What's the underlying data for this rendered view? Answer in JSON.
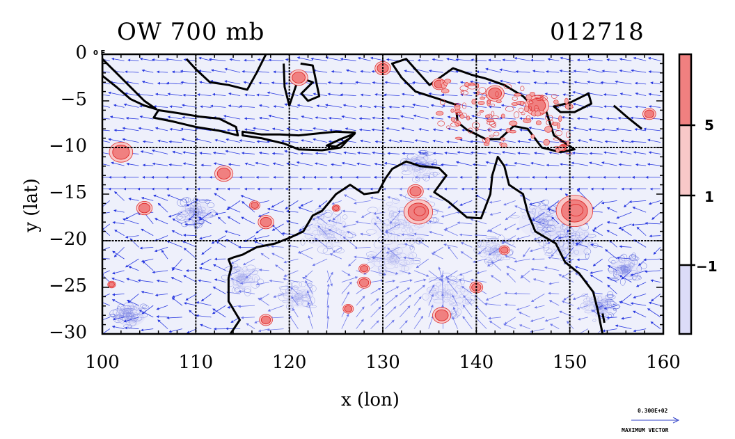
{
  "header": {
    "left_title": "OW 700 mb",
    "right_title": "012718",
    "corner_tag": "0 E"
  },
  "axes": {
    "xlabel": "x (lon)",
    "ylabel": "y (lat)",
    "xticks": [
      100,
      110,
      120,
      130,
      140,
      150,
      160
    ],
    "yticks": [
      0,
      -5,
      -10,
      -15,
      -20,
      -25,
      -30
    ],
    "xtick_labels": [
      "100",
      "110",
      "120",
      "130",
      "140",
      "150",
      "160"
    ],
    "ytick_labels": [
      "0",
      "−5",
      "−10",
      "−15",
      "−20",
      "−25",
      "−30"
    ],
    "xlim": [
      100,
      160
    ],
    "ylim": [
      -30,
      0
    ],
    "grid_lon": [
      110,
      120,
      130,
      140,
      150
    ],
    "grid_lat": [
      -10,
      -20
    ]
  },
  "colorbar": {
    "labels": [
      "5",
      "1",
      "−1"
    ],
    "levels": [
      5,
      1,
      -1
    ],
    "colors": [
      "#f08080",
      "#f8c8c8",
      "#ffffff",
      "#dcdcf8"
    ]
  },
  "max_vector": {
    "value": "0.300E+02",
    "label": "MAXIMUM VECTOR",
    "color": "#3040c8"
  },
  "colors": {
    "land_outline": "#000000",
    "positive_contour": "#e03030",
    "negative_contour": "#2030d0",
    "vector": "#2838e0",
    "positive_fill": "#f08080",
    "negative_fill": "#dcdcf8"
  },
  "features": {
    "positive_blobs": [
      {
        "lon": 133.8,
        "lat": -16.9,
        "r": 1.1
      },
      {
        "lon": 150.5,
        "lat": -16.8,
        "r": 1.4
      },
      {
        "lon": 133.5,
        "lat": -14.7,
        "r": 0.6
      },
      {
        "lon": 117.5,
        "lat": -18.0,
        "r": 0.6
      },
      {
        "lon": 104.5,
        "lat": -16.5,
        "r": 0.6
      },
      {
        "lon": 102.0,
        "lat": -10.5,
        "r": 0.9
      },
      {
        "lon": 113.0,
        "lat": -12.8,
        "r": 0.7
      },
      {
        "lon": 116.3,
        "lat": -16.2,
        "r": 0.4
      },
      {
        "lon": 128.0,
        "lat": -24.5,
        "r": 0.5
      },
      {
        "lon": 126.3,
        "lat": -27.3,
        "r": 0.4
      },
      {
        "lon": 136.3,
        "lat": -28.0,
        "r": 0.7
      },
      {
        "lon": 140.0,
        "lat": -25.0,
        "r": 0.5
      },
      {
        "lon": 128.0,
        "lat": -23.0,
        "r": 0.4
      },
      {
        "lon": 125.0,
        "lat": -16.5,
        "r": 0.3
      },
      {
        "lon": 158.5,
        "lat": -6.4,
        "r": 0.5
      },
      {
        "lon": 149.3,
        "lat": -10.0,
        "r": 0.3
      },
      {
        "lon": 130.0,
        "lat": -1.5,
        "r": 0.6
      },
      {
        "lon": 121.0,
        "lat": -2.5,
        "r": 0.7
      },
      {
        "lon": 146.5,
        "lat": -5.5,
        "r": 0.9
      },
      {
        "lon": 142.0,
        "lat": -4.2,
        "r": 0.7
      },
      {
        "lon": 136.0,
        "lat": -3.2,
        "r": 0.5
      },
      {
        "lon": 101.0,
        "lat": -24.7,
        "r": 0.3
      },
      {
        "lon": 117.5,
        "lat": -28.5,
        "r": 0.5
      },
      {
        "lon": 143.0,
        "lat": -21.0,
        "r": 0.4
      }
    ]
  }
}
